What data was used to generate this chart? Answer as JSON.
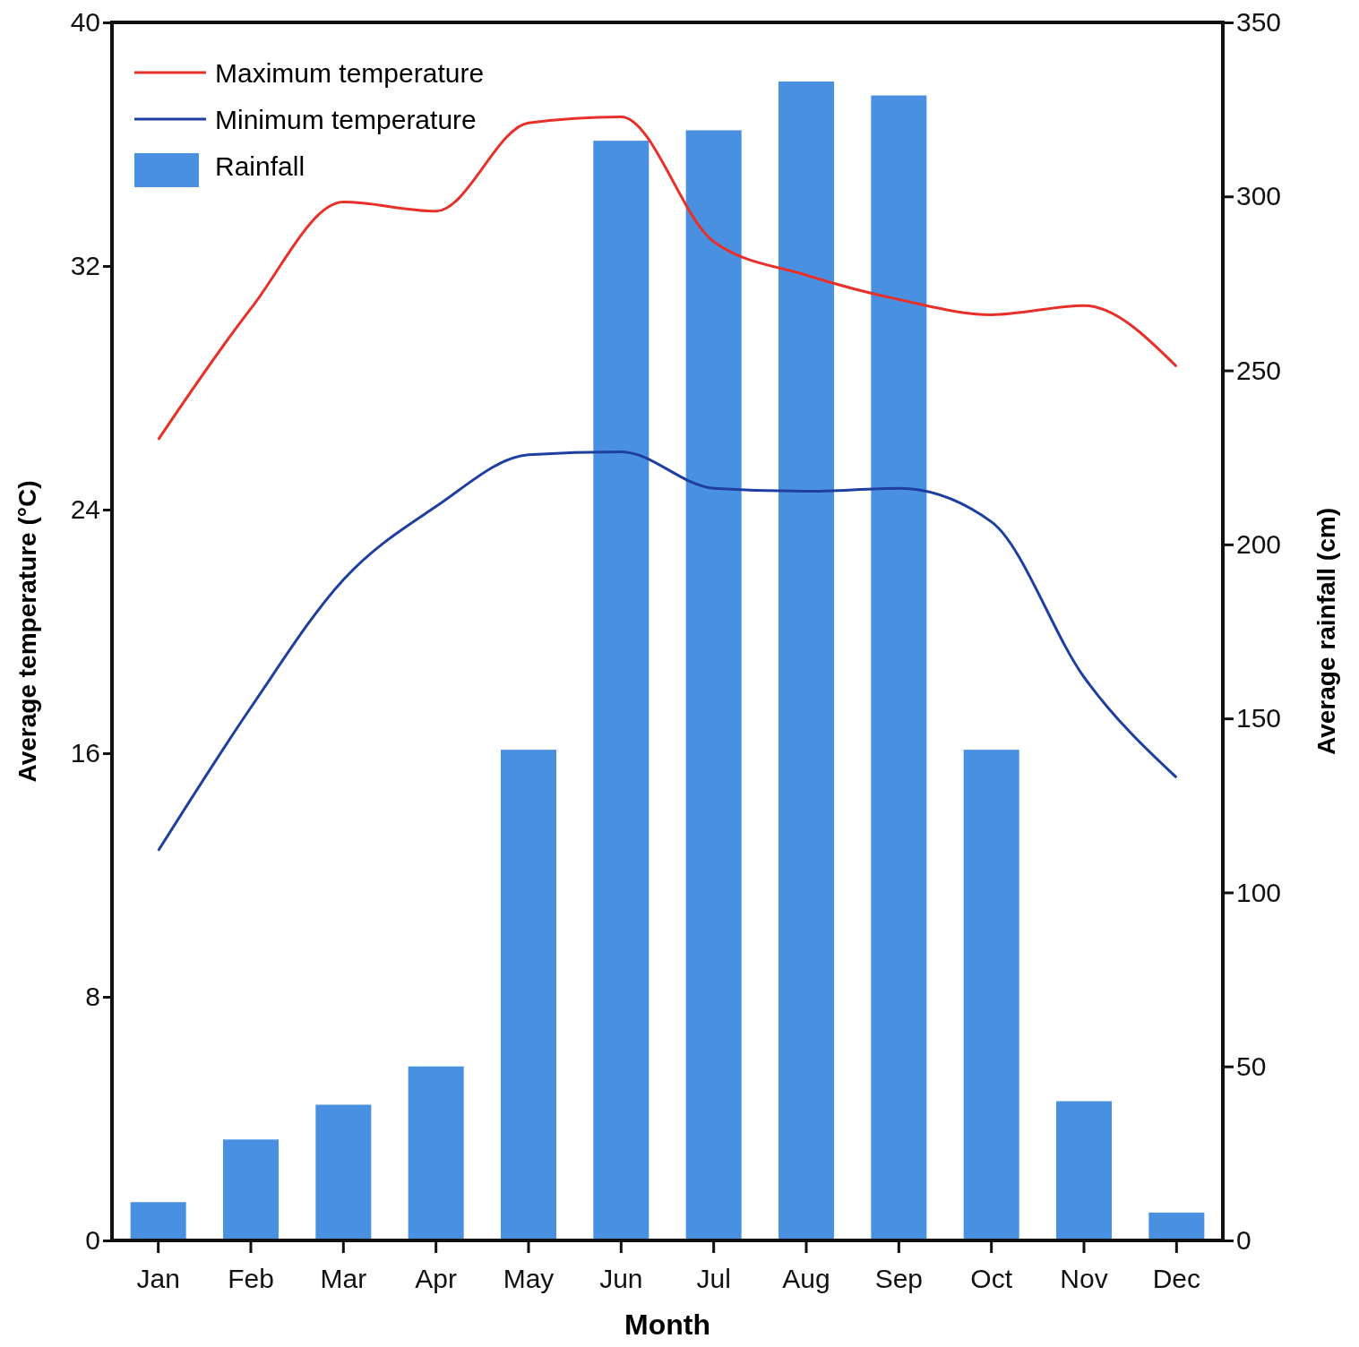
{
  "chart_data": {
    "type": "bar",
    "xlabel": "Month",
    "ylabel": "Average temperature (°C)",
    "y2label": "Average rainfall (cm)",
    "categories": [
      "Jan",
      "Feb",
      "Mar",
      "Apr",
      "May",
      "Jun",
      "Jul",
      "Aug",
      "Sep",
      "Oct",
      "Nov",
      "Dec"
    ],
    "series": [
      {
        "name": "Maximum temperature",
        "type": "line",
        "color": "#e8302a",
        "values": [
          26.3,
          30.6,
          34.1,
          33.8,
          36.7,
          36.9,
          32.8,
          31.7,
          30.9,
          30.4,
          30.7,
          28.7
        ]
      },
      {
        "name": "Minimum temperature",
        "type": "line",
        "color": "#1f3fa0",
        "values": [
          12.8,
          17.5,
          21.7,
          24.1,
          25.8,
          25.9,
          24.7,
          24.6,
          24.7,
          23.6,
          18.5,
          15.2
        ]
      },
      {
        "name": "Rainfall",
        "axis": "y2",
        "color": "#4a90e0",
        "values": [
          11,
          29,
          39,
          50,
          141,
          316,
          319,
          333,
          329,
          141,
          40,
          8
        ]
      }
    ],
    "ylim": [
      0,
      40
    ],
    "yticks": [
      0,
      8,
      16,
      24,
      32,
      40
    ],
    "y2lim": [
      0,
      350
    ],
    "y2ticks": [
      0,
      50,
      100,
      150,
      200,
      250,
      300,
      350
    ],
    "legend": "top left",
    "grid": false,
    "marker": "none",
    "line_style": "solid"
  }
}
